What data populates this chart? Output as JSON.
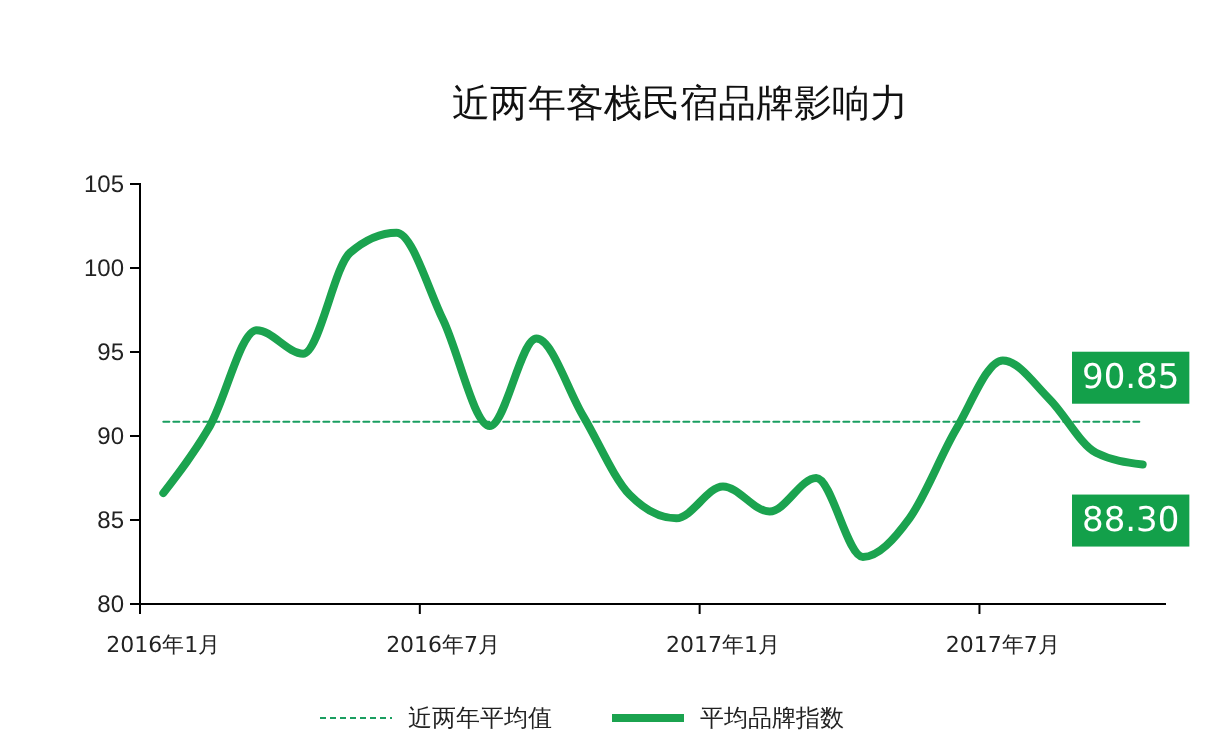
{
  "chart_data": {
    "type": "line",
    "title": "近两年客栈民宿品牌影响力",
    "categories": [
      "2016年1月",
      null,
      null,
      null,
      null,
      null,
      "2016年7月",
      null,
      null,
      null,
      null,
      null,
      "2017年1月",
      null,
      null,
      null,
      null,
      null,
      "2017年7月",
      null,
      null,
      null
    ],
    "series": [
      {
        "name": "近两年平均值",
        "color": "#1a9e60",
        "line_style": "dashed",
        "values": [
          90.85,
          90.85,
          90.85,
          90.85,
          90.85,
          90.85,
          90.85,
          90.85,
          90.85,
          90.85,
          90.85,
          90.85,
          90.85,
          90.85,
          90.85,
          90.85,
          90.85,
          90.85,
          90.85,
          90.85,
          90.85,
          90.85
        ],
        "value_labels": [
          null,
          null,
          null,
          null,
          null,
          null,
          null,
          null,
          null,
          null,
          null,
          null,
          null,
          null,
          null,
          null,
          null,
          null,
          null,
          null,
          null,
          "90.85"
        ]
      },
      {
        "name": "平均品牌指数",
        "color": "#1ba34f",
        "line_style": "solid",
        "values": [
          86.6,
          90.6,
          96.3,
          94.9,
          100.9,
          102.1,
          96.9,
          90.6,
          95.8,
          91.2,
          86.5,
          85.1,
          87.0,
          85.5,
          87.5,
          82.8,
          85.1,
          90.4,
          94.5,
          92.2,
          89.0,
          88.3
        ],
        "value_labels": [
          null,
          null,
          null,
          null,
          null,
          null,
          null,
          null,
          null,
          null,
          null,
          null,
          null,
          null,
          null,
          null,
          null,
          null,
          null,
          null,
          null,
          "88.30"
        ]
      }
    ],
    "ylim": [
      80,
      105
    ],
    "yticks": [
      80,
      85,
      90,
      95,
      100,
      105
    ],
    "grid": false,
    "legend": "bottom",
    "marker": "none"
  }
}
